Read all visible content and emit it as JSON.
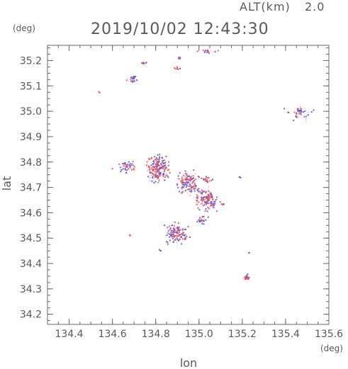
{
  "header": {
    "altitude_label": "ALT(km)",
    "altitude_value": "2.0",
    "timestamp": "2019/10/02 12:43:30"
  },
  "chart_data": {
    "type": "scatter",
    "title": "2019/10/02 12:43:30",
    "subtitle": "ALT(km)  2.0",
    "xlabel": "lon",
    "ylabel": "lat",
    "x_unit": "(deg)",
    "y_unit": "(deg)",
    "xlim": [
      134.3,
      135.6
    ],
    "ylim": [
      34.16,
      35.26
    ],
    "x_ticks": [
      134.4,
      134.6,
      134.8,
      135.0,
      135.2,
      135.4,
      135.6
    ],
    "x_tick_labels": [
      "134.4",
      "134.6",
      "134.8",
      "135.0",
      "135.2",
      "135.4",
      "135.6"
    ],
    "y_ticks": [
      34.2,
      34.3,
      34.4,
      34.5,
      34.6,
      34.7,
      34.8,
      34.9,
      35.0,
      35.1,
      35.2
    ],
    "y_tick_labels": [
      "34.2",
      "34.3",
      "34.4",
      "34.5",
      "34.6",
      "34.7",
      "34.8",
      "34.9",
      "35.0",
      "35.1",
      "35.2"
    ],
    "grid": false,
    "colors": {
      "positive": "#e8474c",
      "negative": "#4a55e0",
      "faint": "#f4c8c8"
    },
    "clusters": [
      {
        "lon": 134.69,
        "lat": 35.13,
        "spread_lon": 0.018,
        "spread_lat": 0.012,
        "n": 30
      },
      {
        "lon": 134.745,
        "lat": 35.19,
        "spread_lon": 0.012,
        "spread_lat": 0.006,
        "n": 10
      },
      {
        "lon": 134.905,
        "lat": 35.17,
        "spread_lon": 0.018,
        "spread_lat": 0.004,
        "n": 10
      },
      {
        "lon": 134.91,
        "lat": 35.21,
        "spread_lon": 0.005,
        "spread_lat": 0.005,
        "n": 5
      },
      {
        "lon": 135.04,
        "lat": 35.235,
        "spread_lon": 0.04,
        "spread_lat": 0.006,
        "n": 16
      },
      {
        "lon": 135.47,
        "lat": 34.995,
        "spread_lon": 0.04,
        "spread_lat": 0.025,
        "n": 45
      },
      {
        "lon": 134.54,
        "lat": 35.075,
        "spread_lon": 0.003,
        "spread_lat": 0.003,
        "n": 2
      },
      {
        "lon": 134.67,
        "lat": 34.78,
        "spread_lon": 0.04,
        "spread_lat": 0.018,
        "n": 50
      },
      {
        "lon": 134.81,
        "lat": 34.77,
        "spread_lon": 0.04,
        "spread_lat": 0.04,
        "n": 220
      },
      {
        "lon": 134.95,
        "lat": 34.72,
        "spread_lon": 0.04,
        "spread_lat": 0.035,
        "n": 140
      },
      {
        "lon": 135.04,
        "lat": 34.65,
        "spread_lon": 0.04,
        "spread_lat": 0.03,
        "n": 140
      },
      {
        "lon": 135.03,
        "lat": 34.73,
        "spread_lon": 0.02,
        "spread_lat": 0.01,
        "n": 25
      },
      {
        "lon": 134.9,
        "lat": 34.52,
        "spread_lon": 0.04,
        "spread_lat": 0.03,
        "n": 130
      },
      {
        "lon": 135.01,
        "lat": 34.57,
        "spread_lon": 0.02,
        "spread_lat": 0.015,
        "n": 25
      },
      {
        "lon": 135.11,
        "lat": 34.63,
        "spread_lon": 0.005,
        "spread_lat": 0.005,
        "n": 4
      },
      {
        "lon": 135.19,
        "lat": 34.74,
        "spread_lon": 0.004,
        "spread_lat": 0.004,
        "n": 3
      },
      {
        "lon": 134.68,
        "lat": 34.51,
        "spread_lon": 0.004,
        "spread_lat": 0.003,
        "n": 3
      },
      {
        "lon": 134.82,
        "lat": 34.45,
        "spread_lon": 0.004,
        "spread_lat": 0.004,
        "n": 3
      },
      {
        "lon": 135.22,
        "lat": 34.345,
        "spread_lon": 0.012,
        "spread_lat": 0.007,
        "n": 26
      },
      {
        "lon": 135.23,
        "lat": 34.44,
        "spread_lon": 0.003,
        "spread_lat": 0.003,
        "n": 2
      }
    ]
  }
}
